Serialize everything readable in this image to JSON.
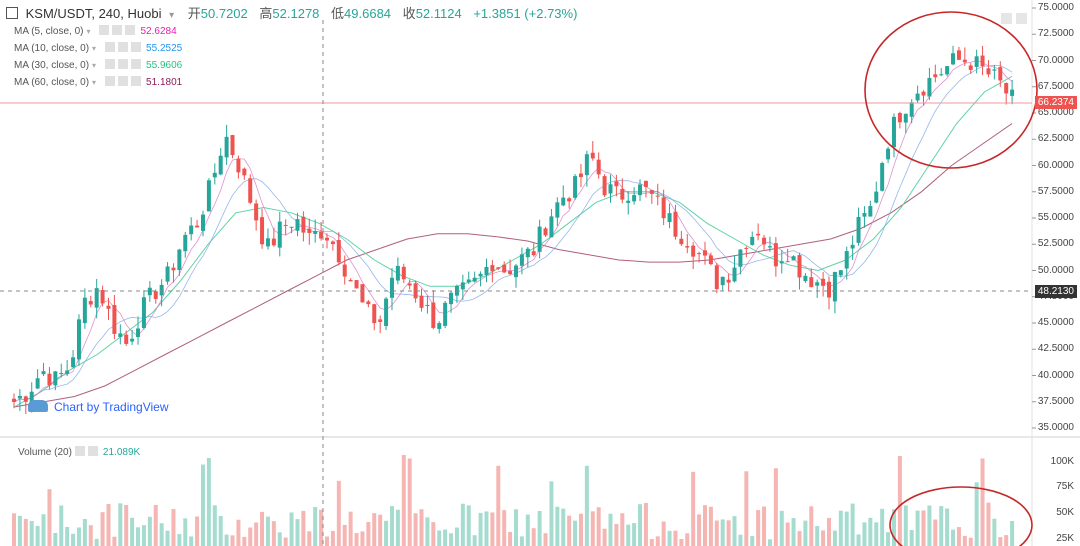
{
  "header": {
    "symbol": "KSM/USDT, 240, Huobi",
    "open_label": "开",
    "open": "50.7202",
    "high_label": "高",
    "high": "52.1278",
    "low_label": "低",
    "low": "49.6684",
    "close_label": "收",
    "close": "52.1124",
    "change": "+1.3851 (+2.73%)"
  },
  "indicators": [
    {
      "label": "MA (5, close, 0)",
      "value": "52.6284",
      "color": "#e91eaf"
    },
    {
      "label": "MA (10, close, 0)",
      "value": "55.2525",
      "color": "#2196f3"
    },
    {
      "label": "MA (30, close, 0)",
      "value": "55.9606",
      "color": "#26c281"
    },
    {
      "label": "MA (60, close, 0)",
      "value": "51.1801",
      "color": "#8e1b5a"
    }
  ],
  "volume_indicator": {
    "label": "Volume (20)",
    "value": "21.089K"
  },
  "watermark": "Chart by TradingView",
  "price_tags": {
    "last": "66.2374",
    "crosshair": "48.2130"
  },
  "colors": {
    "up": "#26a69a",
    "down": "#ef5350",
    "up_vol": "#a5dccf",
    "down_vol": "#f5b5b2",
    "annotation": "#c62828"
  },
  "chart_data": {
    "type": "candlestick",
    "y_ticks": [
      "75.0000",
      "72.5000",
      "70.0000",
      "67.5000",
      "65.0000",
      "62.5000",
      "60.0000",
      "57.5000",
      "55.0000",
      "52.5000",
      "50.0000",
      "47.5000",
      "45.0000",
      "42.5000",
      "40.0000",
      "37.5000",
      "35.0000"
    ],
    "ylim": [
      35,
      75
    ],
    "volume_ticks": [
      "100K",
      "75K",
      "50K",
      "25K"
    ],
    "close_path": [
      37.5,
      38.5,
      40.5,
      39.5,
      41,
      47,
      48.5,
      45,
      43,
      46,
      48,
      49.5,
      53,
      54.5,
      58,
      63,
      60,
      56,
      52,
      54,
      55,
      53,
      54,
      52,
      49,
      46,
      45,
      50,
      49,
      47,
      45,
      47,
      48,
      49,
      51,
      50,
      51,
      52,
      55,
      57,
      58,
      61,
      58,
      57,
      58,
      57.5,
      56,
      54,
      53,
      51,
      49,
      50,
      53,
      54,
      51,
      52,
      50,
      49,
      48.5,
      50.5,
      54,
      56,
      62,
      65,
      67,
      68,
      69,
      70,
      70,
      69,
      68,
      66.2
    ],
    "ma_paths": {
      "ma60": [
        37,
        37.5,
        38,
        39,
        40.5,
        42,
        43.5,
        45,
        46.5,
        48,
        49.5,
        51,
        52,
        53,
        53.5,
        53.5,
        53.2,
        52.8,
        52,
        51.5,
        51,
        50.8,
        50.8,
        51,
        51.5,
        52,
        52.5,
        53,
        54,
        55.5,
        57.5,
        60,
        62,
        64
      ],
      "ma30": [
        37,
        38.5,
        40.5,
        42,
        44,
        46,
        49,
        52.5,
        55.5,
        56,
        55.5,
        54.5,
        53,
        51,
        49.5,
        48.5,
        48.5,
        49.5,
        51,
        52.5,
        54.5,
        56.5,
        57.5,
        57.5,
        56.5,
        54.5,
        53,
        51.5,
        50.5,
        50,
        51,
        53,
        56,
        60,
        64,
        67,
        68.5
      ]
    },
    "annotations": [
      "price-cluster-circle",
      "volume-cluster-circle"
    ]
  }
}
